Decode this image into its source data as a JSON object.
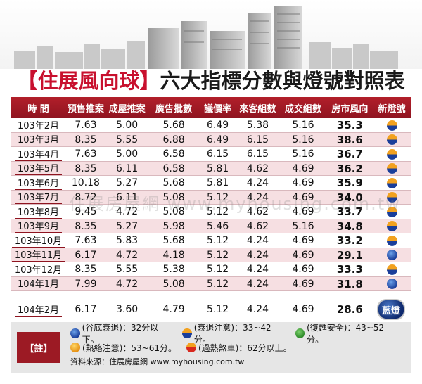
{
  "title": {
    "open_bracket": "【",
    "brand": "住展風向球",
    "close_bracket": "】",
    "text": "六大指標分數與燈號對照表"
  },
  "columns": [
    "時 間",
    "預售推案",
    "成屋推案",
    "廣告批數",
    "議價率",
    "來客組數",
    "成交組數",
    "房市風向",
    "新燈號"
  ],
  "rows": [
    {
      "time": "103年2月",
      "v": [
        "7.63",
        "5.00",
        "5.68",
        "6.49",
        "5.38",
        "5.16",
        "35.3"
      ],
      "light": "blueorange"
    },
    {
      "time": "103年3月",
      "v": [
        "8.35",
        "5.55",
        "6.88",
        "6.49",
        "6.15",
        "5.16",
        "38.6"
      ],
      "light": "blueorange"
    },
    {
      "time": "103年4月",
      "v": [
        "7.63",
        "5.00",
        "6.58",
        "6.15",
        "6.15",
        "5.16",
        "36.7"
      ],
      "light": "blueorange"
    },
    {
      "time": "103年5月",
      "v": [
        "8.35",
        "6.11",
        "6.58",
        "5.81",
        "4.62",
        "4.69",
        "36.2"
      ],
      "light": "blueorange"
    },
    {
      "time": "103年6月",
      "v": [
        "10.18",
        "5.27",
        "5.68",
        "5.81",
        "4.24",
        "4.69",
        "35.9"
      ],
      "light": "blueorange"
    },
    {
      "time": "103年7月",
      "v": [
        "8.72",
        "6.11",
        "5.08",
        "5.12",
        "4.24",
        "4.69",
        "34.0"
      ],
      "light": "blueorange"
    },
    {
      "time": "103年8月",
      "v": [
        "9.45",
        "4.72",
        "5.08",
        "5.12",
        "4.62",
        "4.69",
        "33.7"
      ],
      "light": "blueorange"
    },
    {
      "time": "103年9月",
      "v": [
        "8.35",
        "5.27",
        "5.98",
        "5.46",
        "4.62",
        "5.16",
        "34.8"
      ],
      "light": "blueorange"
    },
    {
      "time": "103年10月",
      "v": [
        "7.63",
        "5.83",
        "5.68",
        "5.12",
        "4.24",
        "4.69",
        "33.2"
      ],
      "light": "blueorange"
    },
    {
      "time": "103年11月",
      "v": [
        "6.17",
        "4.72",
        "4.18",
        "5.12",
        "4.24",
        "4.69",
        "29.1"
      ],
      "light": "blue"
    },
    {
      "time": "103年12月",
      "v": [
        "8.35",
        "5.55",
        "5.38",
        "5.12",
        "4.24",
        "4.69",
        "33.3"
      ],
      "light": "blueorange"
    },
    {
      "time": "104年1月",
      "v": [
        "7.99",
        "4.72",
        "5.08",
        "5.12",
        "4.24",
        "4.69",
        "31.8"
      ],
      "light": "blue"
    },
    {
      "time": "104年2月",
      "v": [
        "6.17",
        "3.60",
        "4.79",
        "5.12",
        "4.24",
        "4.69",
        "28.6"
      ],
      "light": "lamp",
      "light_label": "藍燈"
    }
  ],
  "notes": {
    "tag": "【註】",
    "legend": [
      {
        "icon": "blue",
        "text": "(谷底衰退)：32分以下。"
      },
      {
        "icon": "yb",
        "text": "(衰退注意)：33~42分。"
      },
      {
        "icon": "green",
        "text": "(復甦安全)：43~52分。"
      },
      {
        "icon": "yellow",
        "text": "(熱絡注意)：53~61分。"
      },
      {
        "icon": "red",
        "text": "(過熱煞車)：62分以上。"
      }
    ],
    "source": "資料來源：住展房屋網 www.myhousing.com.tw"
  },
  "watermark": "住展房屋網 www.myhousing.com.tw"
}
